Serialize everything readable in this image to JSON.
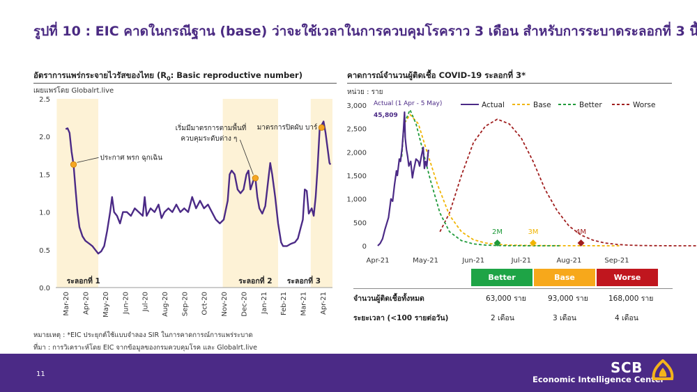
{
  "title": "รูปที่ 10 : EIC คาดในกรณีฐาน (base) ว่าจะใช้เวลาในการควบคุมโรคราว 3 เดือน สำหรับการระบาดระลอกที่ 3 นี้",
  "left_panel": {
    "title_pre": "อัตราการแพร่กระจายไวรัสของไทย (R",
    "title_sub": "0",
    "title_post": ": Basic reproductive number)",
    "source_note": "เผยแพร่โดย Globalrt.live"
  },
  "right_panel": {
    "title": "คาดการณ์จำนวนผู้ติดเชื้อ COVID-19 ระลอกที่ 3*",
    "unit": "หน่วย : ราย"
  },
  "chart_data": [
    {
      "type": "line",
      "ylim": [
        0,
        2.5
      ],
      "yticks": [
        "0.0",
        "0.5",
        "1.0",
        "1.5",
        "2.0",
        "2.5"
      ],
      "xticks": [
        "Mar-20",
        "Apr-20",
        "May-20",
        "Jun-20",
        "Jul-20",
        "Aug-20",
        "Sep-20",
        "Oct-20",
        "Nov-20",
        "Dec-20",
        "Jan-21",
        "Feb-21",
        "Mar-21",
        "Apr-21"
      ],
      "series": [
        {
          "values": [
            [
              0.0,
              2.1
            ],
            [
              0.1,
              2.11
            ],
            [
              0.2,
              2.05
            ],
            [
              0.3,
              1.8
            ],
            [
              0.4,
              1.63
            ],
            [
              0.5,
              1.3
            ],
            [
              0.6,
              1.0
            ],
            [
              0.7,
              0.8
            ],
            [
              0.85,
              0.68
            ],
            [
              1.0,
              0.62
            ],
            [
              1.2,
              0.58
            ],
            [
              1.35,
              0.55
            ],
            [
              1.5,
              0.5
            ],
            [
              1.65,
              0.45
            ],
            [
              1.8,
              0.48
            ],
            [
              1.95,
              0.55
            ],
            [
              2.1,
              0.75
            ],
            [
              2.25,
              1.0
            ],
            [
              2.35,
              1.2
            ],
            [
              2.45,
              1.0
            ],
            [
              2.6,
              0.95
            ],
            [
              2.75,
              0.85
            ],
            [
              2.9,
              1.0
            ],
            [
              3.1,
              1.0
            ],
            [
              3.3,
              0.95
            ],
            [
              3.5,
              1.05
            ],
            [
              3.7,
              1.0
            ],
            [
              3.9,
              0.95
            ],
            [
              4.0,
              1.2
            ],
            [
              4.1,
              0.95
            ],
            [
              4.3,
              1.05
            ],
            [
              4.5,
              1.0
            ],
            [
              4.7,
              1.1
            ],
            [
              4.85,
              0.92
            ],
            [
              5.0,
              1.0
            ],
            [
              5.2,
              1.05
            ],
            [
              5.4,
              1.0
            ],
            [
              5.6,
              1.1
            ],
            [
              5.8,
              1.0
            ],
            [
              6.0,
              1.05
            ],
            [
              6.2,
              1.0
            ],
            [
              6.4,
              1.2
            ],
            [
              6.6,
              1.05
            ],
            [
              6.8,
              1.15
            ],
            [
              7.0,
              1.05
            ],
            [
              7.2,
              1.1
            ],
            [
              7.4,
              1.0
            ],
            [
              7.6,
              0.9
            ],
            [
              7.8,
              0.85
            ],
            [
              8.0,
              0.9
            ],
            [
              8.2,
              1.15
            ],
            [
              8.3,
              1.5
            ],
            [
              8.4,
              1.55
            ],
            [
              8.55,
              1.5
            ],
            [
              8.7,
              1.3
            ],
            [
              8.85,
              1.25
            ],
            [
              9.0,
              1.3
            ],
            [
              9.15,
              1.5
            ],
            [
              9.25,
              1.55
            ],
            [
              9.35,
              1.3
            ],
            [
              9.5,
              1.42
            ],
            [
              9.6,
              1.45
            ],
            [
              9.7,
              1.2
            ],
            [
              9.8,
              1.05
            ],
            [
              9.95,
              0.98
            ],
            [
              10.1,
              1.08
            ],
            [
              10.25,
              1.42
            ],
            [
              10.35,
              1.65
            ],
            [
              10.45,
              1.5
            ],
            [
              10.6,
              1.2
            ],
            [
              10.75,
              0.85
            ],
            [
              10.9,
              0.6
            ],
            [
              11.0,
              0.55
            ],
            [
              11.2,
              0.55
            ],
            [
              11.4,
              0.58
            ],
            [
              11.6,
              0.6
            ],
            [
              11.75,
              0.65
            ],
            [
              11.9,
              0.8
            ],
            [
              12.0,
              0.9
            ],
            [
              12.1,
              1.3
            ],
            [
              12.2,
              1.28
            ],
            [
              12.3,
              0.98
            ],
            [
              12.45,
              1.05
            ],
            [
              12.55,
              0.95
            ],
            [
              12.65,
              1.2
            ],
            [
              12.75,
              1.6
            ],
            [
              12.85,
              2.1
            ],
            [
              12.95,
              2.15
            ],
            [
              13.05,
              2.2
            ],
            [
              13.15,
              2.05
            ],
            [
              13.25,
              1.85
            ],
            [
              13.35,
              1.65
            ],
            [
              13.4,
              1.63
            ]
          ]
        }
      ],
      "markers": [
        [
          0.4,
          1.63
        ],
        [
          9.6,
          1.45
        ],
        [
          12.95,
          2.12
        ]
      ],
      "annotations": [
        "ประกาศ พรก ฉุกเฉิน",
        "เริ่มมีมาตรการตามพื้นที่",
        "ควบคุมระดับต่าง ๆ",
        "มาตรการปิดผับ บาร์"
      ],
      "wave_labels": [
        "ระลอกที่  1",
        "ระลอกที่  2",
        "ระลอกที่  3"
      ],
      "colors": {
        "line": "#4b2a86",
        "marker": "#f5a623",
        "band": "#fdf2d6"
      }
    },
    {
      "type": "line",
      "ylim": [
        0,
        3000
      ],
      "yticks": [
        "0",
        "500",
        "1,000",
        "1,500",
        "2,000",
        "2,500",
        "3,000"
      ],
      "xticks": [
        "Apr-21",
        "May-21",
        "Jun-21",
        "Jul-21",
        "Aug-21",
        "Sep-21"
      ],
      "legend": [
        "Actual",
        "Base",
        "Better",
        "Worse"
      ],
      "actual_note": "Actual (1 Apr - 5 May)",
      "actual_total": "45,809",
      "series": [
        {
          "name": "Actual",
          "values": [
            [
              0,
              0
            ],
            [
              0.1,
              50
            ],
            [
              0.2,
              150
            ],
            [
              0.3,
              350
            ],
            [
              0.45,
              600
            ],
            [
              0.55,
              1000
            ],
            [
              0.62,
              950
            ],
            [
              0.7,
              1300
            ],
            [
              0.78,
              1600
            ],
            [
              0.82,
              1500
            ],
            [
              0.9,
              1850
            ],
            [
              0.95,
              1800
            ],
            [
              1.02,
              2100
            ],
            [
              1.08,
              2500
            ],
            [
              1.12,
              2850
            ],
            [
              1.15,
              2300
            ],
            [
              1.2,
              2050
            ],
            [
              1.25,
              1900
            ],
            [
              1.3,
              1700
            ],
            [
              1.38,
              1800
            ],
            [
              1.45,
              1450
            ],
            [
              1.5,
              1600
            ],
            [
              1.6,
              1850
            ],
            [
              1.7,
              1800
            ],
            [
              1.75,
              1700
            ],
            [
              1.82,
              1900
            ],
            [
              1.9,
              2100
            ],
            [
              1.95,
              1650
            ],
            [
              2.0,
              1800
            ],
            [
              2.05,
              1700
            ],
            [
              2.12,
              2050
            ]
          ]
        },
        {
          "name": "Base",
          "values": [
            [
              1.0,
              1900
            ],
            [
              1.1,
              2600
            ],
            [
              1.35,
              2800
            ],
            [
              1.7,
              2600
            ],
            [
              2.0,
              2100
            ],
            [
              2.5,
              1300
            ],
            [
              3.0,
              650
            ],
            [
              3.5,
              300
            ],
            [
              4.0,
              130
            ],
            [
              4.5,
              60
            ],
            [
              5.0,
              30
            ],
            [
              5.5,
              15
            ],
            [
              6.0,
              10
            ],
            [
              6.5,
              6
            ],
            [
              7.0,
              4
            ],
            [
              7.5,
              3
            ],
            [
              8.0,
              2
            ],
            [
              8.5,
              1
            ],
            [
              9.0,
              1
            ],
            [
              9.5,
              0
            ],
            [
              10.1,
              0
            ]
          ]
        },
        {
          "name": "Better",
          "values": [
            [
              1.0,
              1900
            ],
            [
              1.1,
              2600
            ],
            [
              1.35,
              2900
            ],
            [
              1.6,
              2600
            ],
            [
              1.9,
              2000
            ],
            [
              2.2,
              1400
            ],
            [
              2.6,
              700
            ],
            [
              3.0,
              300
            ],
            [
              3.5,
              110
            ],
            [
              4.0,
              40
            ],
            [
              4.5,
              15
            ],
            [
              5.0,
              6
            ],
            [
              5.5,
              2
            ],
            [
              6.0,
              1
            ],
            [
              6.5,
              0
            ],
            [
              7.0,
              0
            ],
            [
              7.6,
              0
            ]
          ]
        },
        {
          "name": "Worse",
          "values": [
            [
              2.6,
              300
            ],
            [
              3.0,
              700
            ],
            [
              3.5,
              1500
            ],
            [
              4.0,
              2200
            ],
            [
              4.5,
              2550
            ],
            [
              5.0,
              2700
            ],
            [
              5.5,
              2600
            ],
            [
              6.0,
              2300
            ],
            [
              6.5,
              1800
            ],
            [
              7.0,
              1200
            ],
            [
              7.5,
              750
            ],
            [
              8.0,
              420
            ],
            [
              8.5,
              230
            ],
            [
              9.0,
              120
            ],
            [
              9.5,
              60
            ],
            [
              10.0,
              30
            ],
            [
              10.5,
              14
            ],
            [
              11.0,
              6
            ],
            [
              11.5,
              3
            ],
            [
              12.0,
              1
            ],
            [
              12.5,
              0
            ],
            [
              13.0,
              0
            ],
            [
              13.6,
              0
            ]
          ]
        }
      ],
      "point_labels": [
        "2M",
        "3M",
        "4M"
      ],
      "point_markers": [
        [
          5.0,
          60
        ],
        [
          6.5,
          60
        ],
        [
          8.5,
          60
        ]
      ],
      "colors": {
        "actual": "#4b2a86",
        "base": "#f0b400",
        "better": "#1f9a3a",
        "worse": "#a01e1e"
      }
    }
  ],
  "scenario_table": {
    "headers": [
      {
        "label": "Better",
        "color": "#1ea446"
      },
      {
        "label": "Base",
        "color": "#f7a81b"
      },
      {
        "label": "Worse",
        "color": "#c0161e"
      }
    ],
    "rows": [
      {
        "label": "จำนวนผู้ติดเชื้อทั้งหมด",
        "values": [
          "63,000 ราย",
          "93,000 ราย",
          "168,000 ราย"
        ]
      },
      {
        "label": "ระยะเวลา (<100 รายต่อวัน)",
        "values": [
          "2 เดือน",
          "3 เดือน",
          "4 เดือน"
        ]
      }
    ]
  },
  "notes": [
    "หมายเหตุ : *EIC ประยุกต์ใช้แบบจำลอง SIR ในการคาดการณ์การแพร่ระบาด",
    "ที่มา : การวิเคราะห์โดย EIC จากข้อมูลของกรมควบคุมโรค และ Globalrt.live"
  ],
  "footer": {
    "page": "11",
    "brand": "SCB",
    "tagline": "Economic Intelligence Center"
  }
}
